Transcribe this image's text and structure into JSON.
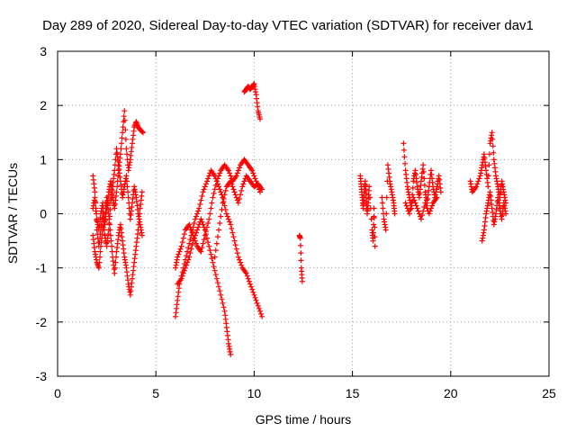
{
  "chart_data": {
    "type": "scatter",
    "title": "Day 289 of 2020, Sidereal Day-to-day VTEC variation (SDTVAR) for receiver dav1",
    "xlabel": "GPS time / hours",
    "ylabel": "SDTVAR / TECUs",
    "xlim": [
      0,
      25
    ],
    "ylim": [
      -3,
      3
    ],
    "xticks": [
      0,
      5,
      10,
      15,
      20,
      25
    ],
    "yticks": [
      -3,
      -2,
      -1,
      0,
      1,
      2,
      3
    ],
    "xtick_labels": [
      "0",
      "5",
      "10",
      "15",
      "20",
      "25"
    ],
    "ytick_labels": [
      "-3",
      "-2",
      "-1",
      "0",
      "1",
      "2",
      "3"
    ],
    "grid": true,
    "marker": "+",
    "series": [
      {
        "name": "SDTVAR",
        "color": "#ff0000",
        "tracks": [
          [
            [
              1.8,
              0.1
            ],
            [
              1.9,
              0.3
            ],
            [
              2.0,
              -0.1
            ],
            [
              2.1,
              -0.3
            ],
            [
              2.2,
              0.0
            ],
            [
              2.3,
              0.2
            ],
            [
              2.4,
              -0.2
            ],
            [
              2.5,
              0.1
            ],
            [
              2.6,
              0.4
            ],
            [
              2.7,
              0.6
            ],
            [
              2.8,
              0.3
            ],
            [
              2.9,
              0.1
            ],
            [
              3.0,
              0.4
            ],
            [
              3.1,
              0.8
            ],
            [
              3.2,
              1.1
            ],
            [
              3.3,
              1.5
            ],
            [
              3.4,
              1.9
            ],
            [
              3.5,
              1.2
            ],
            [
              3.6,
              0.8
            ],
            [
              3.7,
              1.0
            ],
            [
              3.8,
              1.3
            ],
            [
              3.9,
              1.6
            ],
            [
              4.0,
              1.7
            ],
            [
              4.1,
              1.6
            ],
            [
              4.2,
              1.55
            ],
            [
              4.35,
              1.5
            ]
          ],
          [
            [
              1.8,
              0.7
            ],
            [
              1.9,
              0.4
            ],
            [
              2.0,
              -0.3
            ],
            [
              2.1,
              -0.6
            ],
            [
              2.2,
              -0.3
            ],
            [
              2.3,
              0.0
            ],
            [
              2.4,
              -0.4
            ],
            [
              2.5,
              -0.6
            ],
            [
              2.6,
              -0.3
            ],
            [
              2.7,
              0.2
            ],
            [
              2.8,
              0.5
            ],
            [
              2.9,
              0.8
            ],
            [
              3.0,
              1.2
            ],
            [
              3.1,
              0.9
            ],
            [
              3.2,
              0.6
            ],
            [
              3.3,
              0.3
            ],
            [
              3.4,
              0.5
            ],
            [
              3.5,
              0.7
            ],
            [
              3.6,
              0.3
            ],
            [
              3.7,
              -0.1
            ],
            [
              3.8,
              0.2
            ],
            [
              3.9,
              0.5
            ],
            [
              4.0,
              0.3
            ],
            [
              4.1,
              0.0
            ],
            [
              4.2,
              -0.2
            ],
            [
              4.3,
              -0.4
            ]
          ],
          [
            [
              1.8,
              -0.4
            ],
            [
              1.9,
              -0.7
            ],
            [
              2.0,
              -0.9
            ],
            [
              2.1,
              -1.0
            ],
            [
              2.2,
              -0.6
            ],
            [
              2.3,
              -0.3
            ],
            [
              2.4,
              -0.1
            ],
            [
              2.5,
              0.3
            ],
            [
              2.6,
              0.0
            ],
            [
              2.7,
              -0.4
            ],
            [
              2.8,
              -0.8
            ],
            [
              2.9,
              -1.1
            ],
            [
              3.0,
              -0.7
            ],
            [
              3.1,
              -0.4
            ],
            [
              3.2,
              -0.2
            ],
            [
              3.3,
              -0.5
            ],
            [
              3.4,
              -0.8
            ],
            [
              3.5,
              -1.0
            ],
            [
              3.6,
              -1.3
            ],
            [
              3.7,
              -1.5
            ],
            [
              3.8,
              -1.2
            ],
            [
              3.9,
              -0.9
            ],
            [
              4.0,
              -0.6
            ],
            [
              4.1,
              -0.3
            ],
            [
              4.2,
              0.1
            ],
            [
              4.3,
              0.4
            ]
          ],
          [
            [
              6.0,
              -1.9
            ],
            [
              6.1,
              -1.6
            ],
            [
              6.2,
              -1.3
            ],
            [
              6.4,
              -1.0
            ],
            [
              6.6,
              -0.7
            ],
            [
              6.8,
              -0.4
            ],
            [
              7.0,
              -0.1
            ],
            [
              7.2,
              0.1
            ],
            [
              7.4,
              0.4
            ],
            [
              7.6,
              0.6
            ],
            [
              7.8,
              0.8
            ],
            [
              8.0,
              0.7
            ],
            [
              8.2,
              0.5
            ],
            [
              8.4,
              0.3
            ],
            [
              8.6,
              0.0
            ],
            [
              8.8,
              -0.2
            ],
            [
              9.0,
              -0.5
            ],
            [
              9.2,
              -0.8
            ],
            [
              9.4,
              -1.0
            ],
            [
              9.6,
              -1.1
            ],
            [
              9.8,
              -1.3
            ],
            [
              10.0,
              -1.5
            ],
            [
              10.2,
              -1.7
            ],
            [
              10.4,
              -1.9
            ]
          ],
          [
            [
              6.0,
              -1.0
            ],
            [
              6.1,
              -0.8
            ],
            [
              6.3,
              -0.6
            ],
            [
              6.5,
              -0.3
            ],
            [
              6.7,
              -0.2
            ],
            [
              6.9,
              -0.4
            ],
            [
              7.1,
              -0.6
            ],
            [
              7.3,
              -0.7
            ],
            [
              7.5,
              -0.4
            ],
            [
              7.7,
              -0.1
            ],
            [
              7.9,
              0.3
            ],
            [
              8.1,
              0.6
            ],
            [
              8.3,
              0.8
            ],
            [
              8.5,
              0.9
            ],
            [
              8.7,
              0.8
            ],
            [
              8.9,
              0.6
            ],
            [
              9.1,
              0.7
            ],
            [
              9.3,
              0.9
            ],
            [
              9.5,
              1.0
            ],
            [
              9.7,
              0.9
            ],
            [
              9.9,
              0.8
            ],
            [
              10.1,
              0.6
            ],
            [
              10.3,
              0.4
            ]
          ],
          [
            [
              6.1,
              -1.3
            ],
            [
              6.3,
              -1.2
            ],
            [
              6.5,
              -1.0
            ],
            [
              6.7,
              -0.8
            ],
            [
              6.9,
              -0.5
            ],
            [
              7.1,
              -0.3
            ],
            [
              7.3,
              -0.1
            ],
            [
              7.5,
              -0.3
            ],
            [
              7.7,
              -0.6
            ],
            [
              7.9,
              -0.9
            ],
            [
              8.1,
              -1.2
            ],
            [
              8.3,
              -1.5
            ],
            [
              8.5,
              -1.8
            ],
            [
              8.6,
              -2.1
            ],
            [
              8.7,
              -2.4
            ],
            [
              8.8,
              -2.6
            ]
          ],
          [
            [
              8.0,
              -0.8
            ],
            [
              8.2,
              -0.3
            ],
            [
              8.4,
              0.2
            ],
            [
              8.6,
              0.5
            ],
            [
              8.8,
              0.6
            ],
            [
              9.0,
              0.4
            ],
            [
              9.2,
              0.2
            ],
            [
              9.4,
              0.5
            ],
            [
              9.6,
              0.7
            ],
            [
              9.8,
              0.6
            ],
            [
              10.0,
              0.5
            ],
            [
              10.2,
              0.55
            ],
            [
              10.4,
              0.45
            ]
          ],
          [
            [
              9.5,
              2.25
            ],
            [
              9.6,
              2.3
            ],
            [
              9.7,
              2.35
            ],
            [
              9.8,
              2.3
            ],
            [
              9.9,
              2.35
            ],
            [
              10.0,
              2.4
            ],
            [
              10.1,
              2.2
            ],
            [
              10.2,
              1.9
            ],
            [
              10.3,
              1.75
            ]
          ],
          [
            [
              12.3,
              -0.4
            ],
            [
              12.35,
              -0.45
            ],
            [
              12.4,
              -1.0
            ],
            [
              12.45,
              -1.25
            ]
          ],
          [
            [
              15.4,
              0.7
            ],
            [
              15.45,
              0.5
            ],
            [
              15.5,
              0.3
            ],
            [
              15.55,
              0.1
            ],
            [
              15.6,
              0.4
            ],
            [
              15.65,
              0.6
            ],
            [
              15.7,
              0.3
            ],
            [
              15.75,
              0.0
            ],
            [
              15.8,
              0.2
            ],
            [
              15.85,
              0.5
            ],
            [
              16.0,
              -0.3
            ],
            [
              16.05,
              -0.5
            ],
            [
              16.1,
              0.1
            ],
            [
              16.15,
              -0.6
            ]
          ],
          [
            [
              16.5,
              0.3
            ],
            [
              16.6,
              -0.1
            ],
            [
              16.7,
              -0.3
            ],
            [
              16.8,
              0.9
            ],
            [
              16.9,
              0.6
            ],
            [
              17.0,
              0.4
            ],
            [
              17.1,
              0.2
            ],
            [
              17.15,
              0.0
            ]
          ],
          [
            [
              17.6,
              1.3
            ],
            [
              17.7,
              0.8
            ],
            [
              17.8,
              0.5
            ],
            [
              17.9,
              0.3
            ],
            [
              18.0,
              0.1
            ],
            [
              18.1,
              0.6
            ],
            [
              18.2,
              0.8
            ],
            [
              18.3,
              0.5
            ],
            [
              18.4,
              0.3
            ],
            [
              18.5,
              0.6
            ],
            [
              18.6,
              0.9
            ],
            [
              18.7,
              0.4
            ],
            [
              18.8,
              0.2
            ],
            [
              18.9,
              0.5
            ],
            [
              19.0,
              0.8
            ],
            [
              19.1,
              0.5
            ],
            [
              19.2,
              0.3
            ],
            [
              19.3,
              0.5
            ],
            [
              19.4,
              0.7
            ],
            [
              19.5,
              0.4
            ]
          ],
          [
            [
              17.7,
              0.2
            ],
            [
              17.9,
              0.0
            ],
            [
              18.1,
              0.3
            ],
            [
              18.3,
              0.1
            ],
            [
              18.5,
              -0.1
            ],
            [
              18.7,
              0.2
            ],
            [
              18.9,
              0.0
            ],
            [
              19.1,
              0.2
            ],
            [
              19.3,
              0.3
            ]
          ],
          [
            [
              21.0,
              0.6
            ],
            [
              21.1,
              0.4
            ],
            [
              21.3,
              0.5
            ],
            [
              21.5,
              0.7
            ],
            [
              21.6,
              0.9
            ],
            [
              21.7,
              1.1
            ],
            [
              21.8,
              0.8
            ],
            [
              21.9,
              0.5
            ],
            [
              22.0,
              1.3
            ],
            [
              22.1,
              1.5
            ],
            [
              22.2,
              1.0
            ],
            [
              22.3,
              0.7
            ],
            [
              22.4,
              0.5
            ],
            [
              22.5,
              0.3
            ],
            [
              22.6,
              0.6
            ],
            [
              22.7,
              0.4
            ],
            [
              22.8,
              0.2
            ]
          ],
          [
            [
              21.6,
              -0.5
            ],
            [
              21.7,
              -0.3
            ],
            [
              21.8,
              0.0
            ],
            [
              21.9,
              0.2
            ],
            [
              22.0,
              0.4
            ],
            [
              22.1,
              0.1
            ],
            [
              22.2,
              -0.2
            ],
            [
              22.3,
              0.0
            ],
            [
              22.4,
              0.3
            ],
            [
              22.5,
              0.1
            ],
            [
              22.6,
              -0.1
            ],
            [
              22.7,
              0.2
            ],
            [
              22.8,
              0.0
            ]
          ]
        ]
      }
    ]
  }
}
